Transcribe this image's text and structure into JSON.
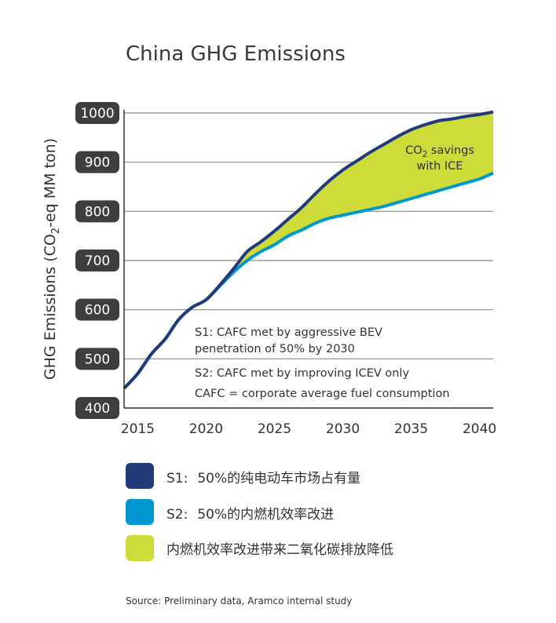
{
  "chart_data": {
    "type": "area",
    "title": "China GHG Emissions",
    "ylabel": "GHG Emissions (CO2-eq MM ton)",
    "ylabel_prefix": "GHG Emissions (CO",
    "ylabel_sub": "2",
    "ylabel_suffix": "-eq MM ton)",
    "ylim": [
      400,
      1000
    ],
    "yticks": [
      400,
      500,
      600,
      700,
      800,
      900,
      1000
    ],
    "xlim": [
      2014,
      2041
    ],
    "xticks": [
      2015,
      2020,
      2025,
      2030,
      2035,
      2040
    ],
    "grid": "horizontal",
    "series": [
      {
        "name": "S1: 50%的纯电动车市场占有量",
        "color": "#233a78",
        "x": [
          2014,
          2015,
          2016,
          2017,
          2018,
          2019,
          2020,
          2021,
          2022,
          2023,
          2024,
          2025,
          2026,
          2027,
          2028,
          2029,
          2030,
          2031,
          2032,
          2033,
          2034,
          2035,
          2036,
          2037,
          2038,
          2039,
          2040,
          2041
        ],
        "values": [
          440,
          470,
          510,
          540,
          580,
          605,
          620,
          650,
          683,
          718,
          738,
          760,
          784,
          808,
          836,
          862,
          884,
          902,
          920,
          936,
          952,
          966,
          976,
          984,
          988,
          993,
          997,
          1002
        ]
      },
      {
        "name": "S2: 50%的内燃机效率改进",
        "color": "#0097d2",
        "x": [
          2014,
          2015,
          2016,
          2017,
          2018,
          2019,
          2020,
          2021,
          2022,
          2023,
          2024,
          2025,
          2026,
          2027,
          2028,
          2029,
          2030,
          2031,
          2032,
          2033,
          2034,
          2035,
          2036,
          2037,
          2038,
          2039,
          2040,
          2041
        ],
        "values": [
          440,
          470,
          510,
          540,
          580,
          605,
          620,
          648,
          676,
          700,
          718,
          732,
          750,
          762,
          776,
          786,
          792,
          798,
          804,
          810,
          818,
          826,
          834,
          842,
          850,
          858,
          866,
          878
        ]
      }
    ],
    "fill_between": {
      "name": "内燃机效率改进带来二氧化碳排放降低",
      "color": "#cddc39"
    },
    "annotation": {
      "line1_prefix": "CO",
      "line1_sub": "2",
      "line1_suffix": " savings",
      "line2": "with ICE"
    },
    "notes": [
      "S1: CAFC met by aggressive BEV",
      "penetration of 50% by 2030",
      "S2: CAFC met by improving ICEV only",
      "CAFC = corporate average fuel consumption"
    ],
    "legend": [
      {
        "prefix": "S1:",
        "text": "50%的纯电动车市场占有量",
        "color": "#233a78"
      },
      {
        "prefix": "S2:",
        "text": "50%的内燃机效率改进",
        "color": "#0097d2"
      },
      {
        "prefix": "",
        "text": "内燃机效率改进带来二氧化碳排放降低",
        "color": "#cddc39"
      }
    ],
    "legend_position": "below",
    "source": "Source: Preliminary data, Aramco internal study"
  }
}
